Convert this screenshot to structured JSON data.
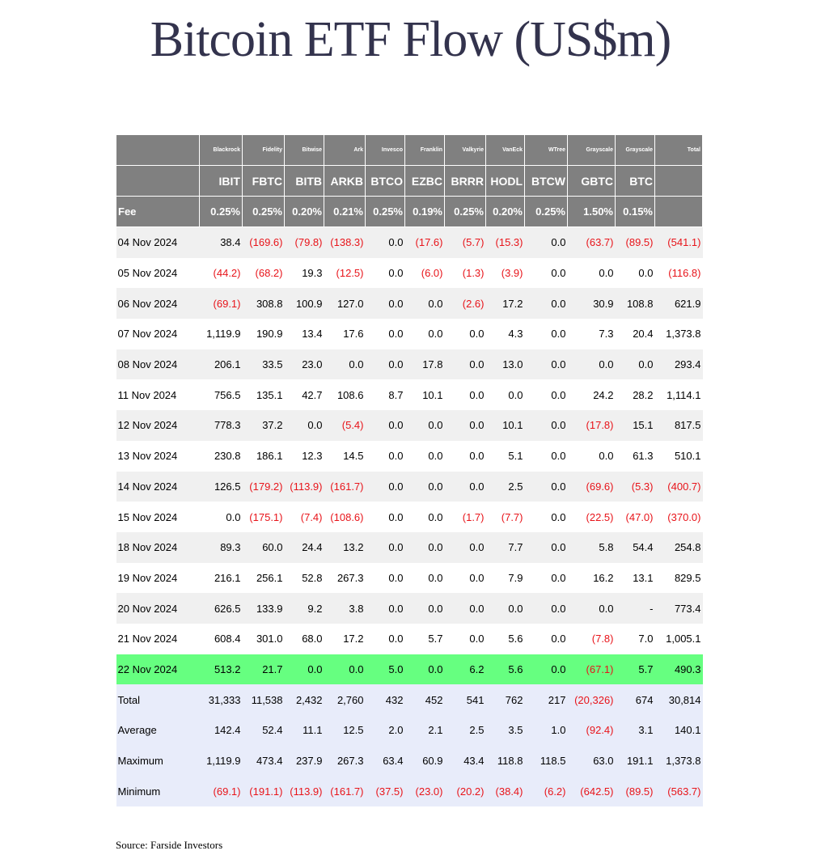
{
  "title": "Bitcoin ETF Flow (US$m)",
  "table": {
    "providers": [
      "Blackrock",
      "Fidelity",
      "Bitwise",
      "Ark",
      "Invesco",
      "Franklin",
      "Valkyrie",
      "VanEck",
      "WTree",
      "Grayscale",
      "Grayscale"
    ],
    "total_label": "Total",
    "tickers": [
      "IBIT",
      "FBTC",
      "BITB",
      "ARKB",
      "BTCO",
      "EZBC",
      "BRRR",
      "HODL",
      "BTCW",
      "GBTC",
      "BTC"
    ],
    "fee_label": "Fee",
    "fees": [
      "0.25%",
      "0.25%",
      "0.20%",
      "0.21%",
      "0.25%",
      "0.19%",
      "0.25%",
      "0.20%",
      "0.25%",
      "1.50%",
      "0.15%"
    ],
    "rows": [
      {
        "label": "04 Nov 2024",
        "cells": [
          "38.4",
          "(169.6)",
          "(79.8)",
          "(138.3)",
          "0.0",
          "(17.6)",
          "(5.7)",
          "(15.3)",
          "0.0",
          "(63.7)",
          "(89.5)",
          "(541.1)"
        ]
      },
      {
        "label": "05 Nov 2024",
        "cells": [
          "(44.2)",
          "(68.2)",
          "19.3",
          "(12.5)",
          "0.0",
          "(6.0)",
          "(1.3)",
          "(3.9)",
          "0.0",
          "0.0",
          "0.0",
          "(116.8)"
        ]
      },
      {
        "label": "06 Nov 2024",
        "cells": [
          "(69.1)",
          "308.8",
          "100.9",
          "127.0",
          "0.0",
          "0.0",
          "(2.6)",
          "17.2",
          "0.0",
          "30.9",
          "108.8",
          "621.9"
        ]
      },
      {
        "label": "07 Nov 2024",
        "cells": [
          "1,119.9",
          "190.9",
          "13.4",
          "17.6",
          "0.0",
          "0.0",
          "0.0",
          "4.3",
          "0.0",
          "7.3",
          "20.4",
          "1,373.8"
        ]
      },
      {
        "label": "08 Nov 2024",
        "cells": [
          "206.1",
          "33.5",
          "23.0",
          "0.0",
          "0.0",
          "17.8",
          "0.0",
          "13.0",
          "0.0",
          "0.0",
          "0.0",
          "293.4"
        ]
      },
      {
        "label": "11 Nov 2024",
        "cells": [
          "756.5",
          "135.1",
          "42.7",
          "108.6",
          "8.7",
          "10.1",
          "0.0",
          "0.0",
          "0.0",
          "24.2",
          "28.2",
          "1,114.1"
        ]
      },
      {
        "label": "12 Nov 2024",
        "cells": [
          "778.3",
          "37.2",
          "0.0",
          "(5.4)",
          "0.0",
          "0.0",
          "0.0",
          "10.1",
          "0.0",
          "(17.8)",
          "15.1",
          "817.5"
        ]
      },
      {
        "label": "13 Nov 2024",
        "cells": [
          "230.8",
          "186.1",
          "12.3",
          "14.5",
          "0.0",
          "0.0",
          "0.0",
          "5.1",
          "0.0",
          "0.0",
          "61.3",
          "510.1"
        ]
      },
      {
        "label": "14 Nov 2024",
        "cells": [
          "126.5",
          "(179.2)",
          "(113.9)",
          "(161.7)",
          "0.0",
          "0.0",
          "0.0",
          "2.5",
          "0.0",
          "(69.6)",
          "(5.3)",
          "(400.7)"
        ]
      },
      {
        "label": "15 Nov 2024",
        "cells": [
          "0.0",
          "(175.1)",
          "(7.4)",
          "(108.6)",
          "0.0",
          "0.0",
          "(1.7)",
          "(7.7)",
          "0.0",
          "(22.5)",
          "(47.0)",
          "(370.0)"
        ]
      },
      {
        "label": "18 Nov 2024",
        "cells": [
          "89.3",
          "60.0",
          "24.4",
          "13.2",
          "0.0",
          "0.0",
          "0.0",
          "7.7",
          "0.0",
          "5.8",
          "54.4",
          "254.8"
        ]
      },
      {
        "label": "19 Nov 2024",
        "cells": [
          "216.1",
          "256.1",
          "52.8",
          "267.3",
          "0.0",
          "0.0",
          "0.0",
          "7.9",
          "0.0",
          "16.2",
          "13.1",
          "829.5"
        ]
      },
      {
        "label": "20 Nov 2024",
        "cells": [
          "626.5",
          "133.9",
          "9.2",
          "3.8",
          "0.0",
          "0.0",
          "0.0",
          "0.0",
          "0.0",
          "0.0",
          "-",
          "773.4"
        ]
      },
      {
        "label": "21 Nov 2024",
        "cells": [
          "608.4",
          "301.0",
          "68.0",
          "17.2",
          "0.0",
          "5.7",
          "0.0",
          "5.6",
          "0.0",
          "(7.8)",
          "7.0",
          "1,005.1"
        ]
      },
      {
        "label": "22 Nov 2024",
        "highlight": true,
        "cells": [
          "513.2",
          "21.7",
          "0.0",
          "0.0",
          "5.0",
          "0.0",
          "6.2",
          "5.6",
          "0.0",
          "(67.1)",
          "5.7",
          "490.3"
        ]
      }
    ],
    "summary": [
      {
        "label": "Total",
        "cells": [
          "31,333",
          "11,538",
          "2,432",
          "2,760",
          "432",
          "452",
          "541",
          "762",
          "217",
          "(20,326)",
          "674",
          "30,814"
        ]
      },
      {
        "label": "Average",
        "cells": [
          "142.4",
          "52.4",
          "11.1",
          "12.5",
          "2.0",
          "2.1",
          "2.5",
          "3.5",
          "1.0",
          "(92.4)",
          "3.1",
          "140.1"
        ]
      },
      {
        "label": "Maximum",
        "cells": [
          "1,119.9",
          "473.4",
          "237.9",
          "267.3",
          "63.4",
          "60.9",
          "43.4",
          "118.8",
          "118.5",
          "63.0",
          "191.1",
          "1,373.8"
        ]
      },
      {
        "label": "Minimum",
        "cells": [
          "(69.1)",
          "(191.1)",
          "(113.9)",
          "(161.7)",
          "(37.5)",
          "(23.0)",
          "(20.2)",
          "(38.4)",
          "(6.2)",
          "(642.5)",
          "(89.5)",
          "(563.7)"
        ]
      }
    ]
  },
  "source": "Source: Farside Investors"
}
